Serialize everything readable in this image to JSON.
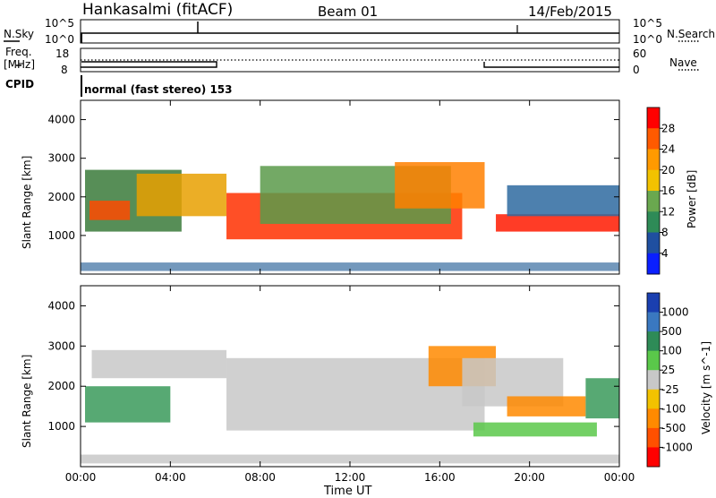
{
  "header": {
    "station": "Hankasalmi (fitACF)",
    "beam": "Beam 01",
    "date": "14/Feb/2015"
  },
  "top_panels": {
    "nsky_label": "N.Sky",
    "nsearch_label": "N.Search",
    "nsky_ticks": [
      "10^5",
      "10^0"
    ],
    "nsearch_ticks": [
      "10^5",
      "10^0"
    ],
    "freq_label_1": "Freq.",
    "freq_label_2": "[MHz]",
    "freq_ticks": [
      "18",
      "8"
    ],
    "nave_label": "Nave",
    "nave_ticks": [
      "60",
      "0"
    ],
    "cpid_label": "CPID",
    "cpid_text": "normal (fast stereo) 153"
  },
  "chart_data": [
    {
      "type": "heatmap",
      "panel": "power",
      "xlabel": "",
      "ylabel": "Slant Range [km]",
      "x_range_hours": [
        0,
        24
      ],
      "ylim": [
        0,
        4500
      ],
      "y_ticks": [
        1000,
        2000,
        3000,
        4000
      ],
      "colorbar_label": "Power [dB]",
      "colorbar_ticks": [
        "28",
        "24",
        "20",
        "16",
        "12",
        "8",
        "4"
      ],
      "colorbar_colors": [
        "#ff0000",
        "#ff5a00",
        "#ff9a00",
        "#f2c200",
        "#6aa84f",
        "#2e8b57",
        "#1f4fa0",
        "#0a1fff"
      ],
      "regions": [
        {
          "t0": 0.2,
          "t1": 4.5,
          "r0": 1100,
          "r1": 2700,
          "color": "#3a7a3a"
        },
        {
          "t0": 0.4,
          "t1": 2.2,
          "r0": 1400,
          "r1": 1900,
          "color": "#ff4a00"
        },
        {
          "t0": 2.5,
          "t1": 6.5,
          "r0": 1500,
          "r1": 2600,
          "color": "#e8a000"
        },
        {
          "t0": 6.5,
          "t1": 17.0,
          "r0": 900,
          "r1": 2100,
          "color": "#ff3000"
        },
        {
          "t0": 8.0,
          "t1": 16.5,
          "r0": 1300,
          "r1": 2800,
          "color": "#5a9a4a"
        },
        {
          "t0": 14.0,
          "t1": 18.0,
          "r0": 1700,
          "r1": 2900,
          "color": "#ff8000"
        },
        {
          "t0": 18.5,
          "t1": 24.0,
          "r0": 1100,
          "r1": 1550,
          "color": "#ff1a00"
        },
        {
          "t0": 19.0,
          "t1": 24.0,
          "r0": 1500,
          "r1": 2300,
          "color": "#2e6aa0"
        },
        {
          "t0": 0.0,
          "t1": 24.0,
          "r0": 80,
          "r1": 300,
          "color": "#5a86b0"
        }
      ]
    },
    {
      "type": "heatmap",
      "panel": "velocity",
      "xlabel": "Time UT",
      "ylabel": "Slant Range [km]",
      "x_range_hours": [
        0,
        24
      ],
      "x_ticks": [
        "00:00",
        "04:00",
        "08:00",
        "12:00",
        "16:00",
        "20:00",
        "00:00"
      ],
      "ylim": [
        0,
        4500
      ],
      "y_ticks": [
        1000,
        2000,
        3000,
        4000
      ],
      "colorbar_label": "Velocity [m s^-1]",
      "colorbar_ticks": [
        "1000",
        "500",
        "100",
        "25",
        "-25",
        "-100",
        "-500",
        "-1000"
      ],
      "colorbar_colors": [
        "#1a3fb0",
        "#3a78c0",
        "#2e8b57",
        "#5ac84a",
        "#c8c8c8",
        "#f2c200",
        "#ff8a00",
        "#ff5000",
        "#ff0000"
      ],
      "regions": [
        {
          "t0": 0.0,
          "t1": 24.0,
          "r0": 80,
          "r1": 300,
          "color": "#c8c8c8"
        },
        {
          "t0": 0.2,
          "t1": 4.0,
          "r0": 1100,
          "r1": 2000,
          "color": "#3a9a5a"
        },
        {
          "t0": 0.5,
          "t1": 6.5,
          "r0": 2200,
          "r1": 2900,
          "color": "#c8c8c8"
        },
        {
          "t0": 6.5,
          "t1": 18.0,
          "r0": 900,
          "r1": 2700,
          "color": "#c8c8c8"
        },
        {
          "t0": 15.5,
          "t1": 18.5,
          "r0": 2000,
          "r1": 3000,
          "color": "#ff8a00"
        },
        {
          "t0": 17.0,
          "t1": 21.5,
          "r0": 1500,
          "r1": 2700,
          "color": "#c8c8c8"
        },
        {
          "t0": 19.0,
          "t1": 22.5,
          "r0": 1250,
          "r1": 1750,
          "color": "#ff8a00"
        },
        {
          "t0": 17.5,
          "t1": 23.0,
          "r0": 750,
          "r1": 1100,
          "color": "#5ac84a"
        },
        {
          "t0": 22.5,
          "t1": 24.0,
          "r0": 1200,
          "r1": 2200,
          "color": "#3a9a5a"
        }
      ]
    }
  ]
}
